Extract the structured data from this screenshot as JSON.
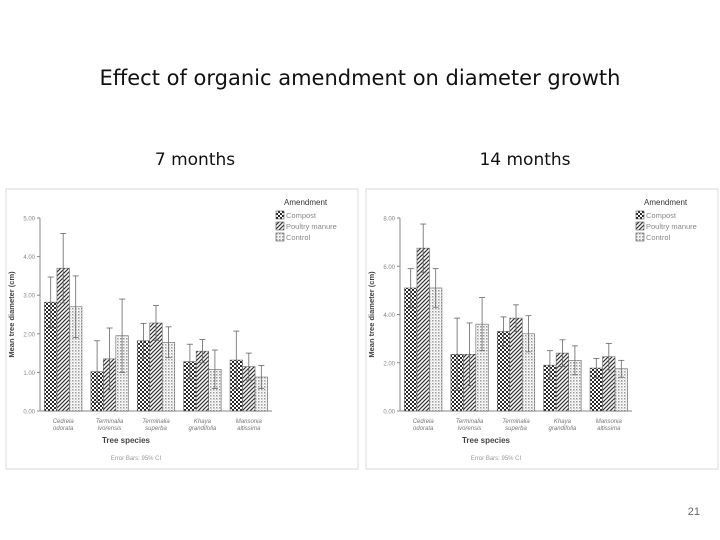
{
  "slide": {
    "title": "Effect of organic amendment on diameter growth",
    "page_number": "21"
  },
  "colors": {
    "compost": "#2a2a2a",
    "poultry_manure": "#3a3a3a",
    "control": "#9a9a9a",
    "axis": "#888888",
    "error_bar": "#666666"
  },
  "chart_data": [
    {
      "type": "bar",
      "title": "7 months",
      "xlabel": "Tree species",
      "ylabel": "Mean tree diameter (cm)",
      "ylim": [
        0,
        5
      ],
      "yticks": [
        "0.00",
        "1.00",
        "2.00",
        "3.00",
        "4.00",
        "5.00"
      ],
      "legend_title": "Amendment",
      "legend_position": "top-right",
      "error_note": "Error Bars: 95% CI",
      "categories": [
        "Cedrela odorata",
        "Terminalia ivorensis",
        "Terminalia superba",
        "Khaya grandifolia",
        "Mansonia altissima"
      ],
      "series": [
        {
          "name": "Compost",
          "values": [
            2.82,
            1.02,
            1.82,
            1.28,
            1.32
          ],
          "ci": [
            0.65,
            0.8,
            0.45,
            0.45,
            0.75
          ]
        },
        {
          "name": "Poultry manure",
          "values": [
            3.7,
            1.35,
            2.28,
            1.55,
            1.15
          ],
          "ci": [
            0.9,
            0.8,
            0.45,
            0.3,
            0.35
          ]
        },
        {
          "name": "Control",
          "values": [
            2.7,
            1.95,
            1.78,
            1.08,
            0.88
          ],
          "ci": [
            0.8,
            0.95,
            0.4,
            0.5,
            0.3
          ]
        }
      ]
    },
    {
      "type": "bar",
      "title": "14 months",
      "xlabel": "Tree species",
      "ylabel": "Mean tree diameter (cm)",
      "ylim": [
        0,
        8
      ],
      "yticks": [
        "0.00",
        "2.00",
        "4.00",
        "6.00",
        "8.00"
      ],
      "legend_title": "Amendment",
      "legend_position": "top-right",
      "error_note": "Error Bars: 95% CI",
      "categories": [
        "Cedrela odorata",
        "Terminalia ivorensis",
        "Terminalia superba",
        "Khaya grandifolia",
        "Mansonia altissima"
      ],
      "series": [
        {
          "name": "Compost",
          "values": [
            5.1,
            2.35,
            3.3,
            1.9,
            1.78
          ],
          "ci": [
            0.8,
            1.5,
            0.6,
            0.6,
            0.4
          ]
        },
        {
          "name": "Poultry manure",
          "values": [
            6.75,
            2.35,
            3.85,
            2.4,
            2.25
          ],
          "ci": [
            1.0,
            1.3,
            0.55,
            0.55,
            0.55
          ]
        },
        {
          "name": "Control",
          "values": [
            5.1,
            3.6,
            3.2,
            2.1,
            1.75
          ],
          "ci": [
            0.8,
            1.1,
            0.75,
            0.6,
            0.35
          ]
        }
      ]
    }
  ]
}
